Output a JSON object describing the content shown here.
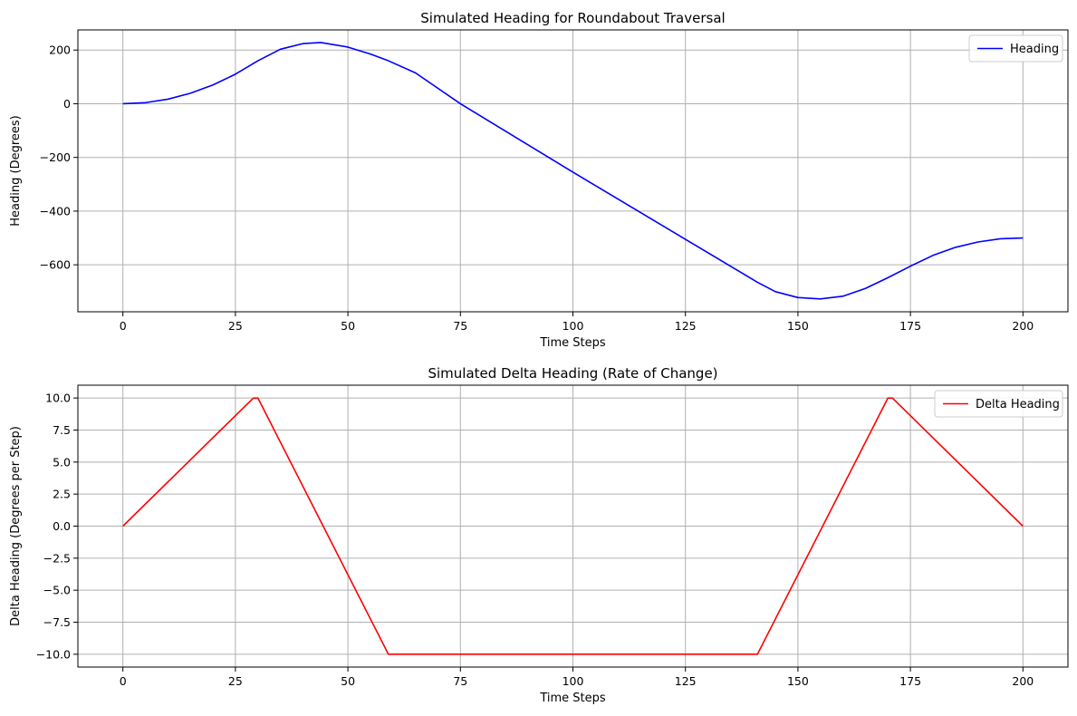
{
  "chart_data": [
    {
      "type": "line",
      "title": "Simulated Heading for Roundabout Traversal",
      "xlabel": "Time Steps",
      "ylabel": "Heading (Degrees)",
      "xlim": [
        -10,
        210
      ],
      "ylim": [
        -775,
        275
      ],
      "xticks": [
        0,
        25,
        50,
        75,
        100,
        125,
        150,
        175,
        200
      ],
      "xtick_labels": [
        "0",
        "25",
        "50",
        "75",
        "100",
        "125",
        "150",
        "175",
        "200"
      ],
      "yticks": [
        200,
        0,
        -200,
        -400,
        -600
      ],
      "ytick_labels": [
        "200",
        "0",
        "−200",
        "−400",
        "−600"
      ],
      "grid": true,
      "legend": "top-right",
      "series": [
        {
          "name": "Heading",
          "color": "#0000ff",
          "x": [
            0,
            5,
            10,
            15,
            20,
            25,
            30,
            35,
            40,
            44,
            50,
            55,
            59,
            65,
            75,
            100,
            125,
            141,
            145,
            150,
            155,
            160,
            165,
            170,
            175,
            180,
            185,
            190,
            195,
            200
          ],
          "y": [
            0,
            4,
            17,
            39,
            70,
            110,
            160,
            203,
            224,
            228,
            211,
            185,
            160,
            115,
            0,
            -255,
            -505,
            -665,
            -700,
            -722,
            -727,
            -717,
            -688,
            -648,
            -605,
            -565,
            -535,
            -515,
            -503,
            -500
          ]
        }
      ]
    },
    {
      "type": "line",
      "title": "Simulated Delta Heading (Rate of Change)",
      "xlabel": "Time Steps",
      "ylabel": "Delta Heading (Degrees per Step)",
      "xlim": [
        -10,
        210
      ],
      "ylim": [
        -11,
        11
      ],
      "xticks": [
        0,
        25,
        50,
        75,
        100,
        125,
        150,
        175,
        200
      ],
      "xtick_labels": [
        "0",
        "25",
        "50",
        "75",
        "100",
        "125",
        "150",
        "175",
        "200"
      ],
      "yticks": [
        10,
        7.5,
        5,
        2.5,
        0,
        -2.5,
        -5,
        -7.5,
        -10
      ],
      "ytick_labels": [
        "10.0",
        "7.5",
        "5.0",
        "2.5",
        "0.0",
        "−2.5",
        "−5.0",
        "−7.5",
        "−10.0"
      ],
      "grid": true,
      "legend": "top-right",
      "series": [
        {
          "name": "Delta Heading",
          "color": "#ff0000",
          "x": [
            0,
            29,
            30,
            59,
            141,
            170,
            171,
            200
          ],
          "y": [
            0,
            10,
            10,
            -10,
            -10,
            10,
            10,
            0
          ]
        }
      ]
    }
  ]
}
